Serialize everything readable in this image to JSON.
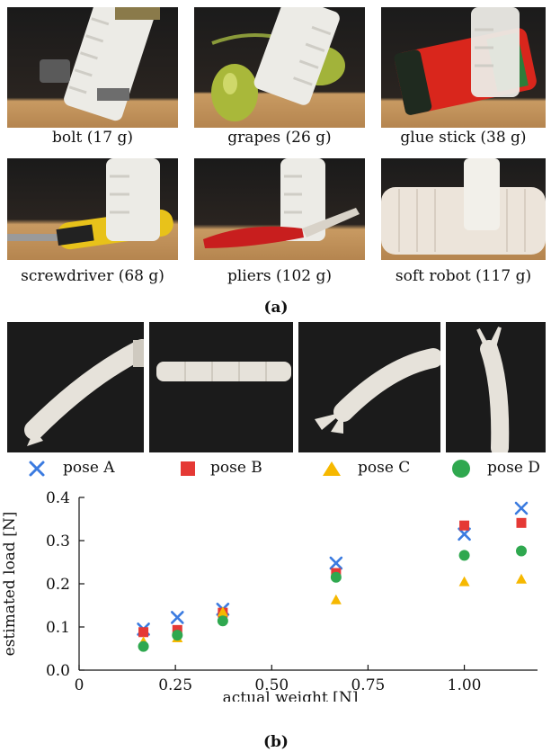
{
  "panel_a": {
    "objects": [
      {
        "caption": "bolt (17 g)"
      },
      {
        "caption": "grapes (26 g)"
      },
      {
        "caption": "glue stick (38 g)"
      },
      {
        "caption": "screwdriver (68 g)"
      },
      {
        "caption": "pliers (102 g)"
      },
      {
        "caption": "soft robot (117 g)"
      }
    ],
    "label": "(a)"
  },
  "panel_b": {
    "label": "(b)",
    "pose_photos": [
      "pose A",
      "pose B",
      "pose C",
      "pose D"
    ]
  },
  "colors": {
    "pose_a": "#3b7be0",
    "pose_b": "#e53935",
    "pose_c": "#f6b800",
    "pose_d": "#2fa84f"
  },
  "chart_data": {
    "type": "scatter",
    "xlabel": "actual weight [N]",
    "ylabel": "estimated load [N]",
    "xlim": [
      0,
      1.19
    ],
    "ylim": [
      0,
      0.4
    ],
    "xticks": [
      "0",
      "0.25",
      "0.50",
      "0.75",
      "1.00"
    ],
    "xtick_values": [
      0,
      0.25,
      0.5,
      0.75,
      1.0
    ],
    "yticks": [
      "0.0",
      "0.1",
      "0.2",
      "0.3",
      "0.4"
    ],
    "ytick_values": [
      0,
      0.1,
      0.2,
      0.3,
      0.4
    ],
    "grid": false,
    "legend_position": "top",
    "series": [
      {
        "name": "pose A",
        "marker": "x",
        "color": "#3b7be0",
        "x": [
          0.167,
          0.255,
          0.373,
          0.667,
          1.0,
          1.148
        ],
        "y": [
          0.095,
          0.122,
          0.141,
          0.248,
          0.315,
          0.375
        ]
      },
      {
        "name": "pose B",
        "marker": "square",
        "color": "#e53935",
        "x": [
          0.167,
          0.255,
          0.373,
          0.667,
          1.0,
          1.148
        ],
        "y": [
          0.088,
          0.093,
          0.133,
          0.225,
          0.335,
          0.341
        ]
      },
      {
        "name": "pose C",
        "marker": "triangle",
        "color": "#f6b800",
        "x": [
          0.167,
          0.255,
          0.373,
          0.667,
          1.0,
          1.148
        ],
        "y": [
          0.066,
          0.075,
          0.135,
          0.163,
          0.205,
          0.211
        ]
      },
      {
        "name": "pose D",
        "marker": "circle",
        "color": "#2fa84f",
        "x": [
          0.167,
          0.255,
          0.373,
          0.667,
          1.0,
          1.148
        ],
        "y": [
          0.055,
          0.081,
          0.114,
          0.215,
          0.266,
          0.276
        ]
      }
    ]
  }
}
